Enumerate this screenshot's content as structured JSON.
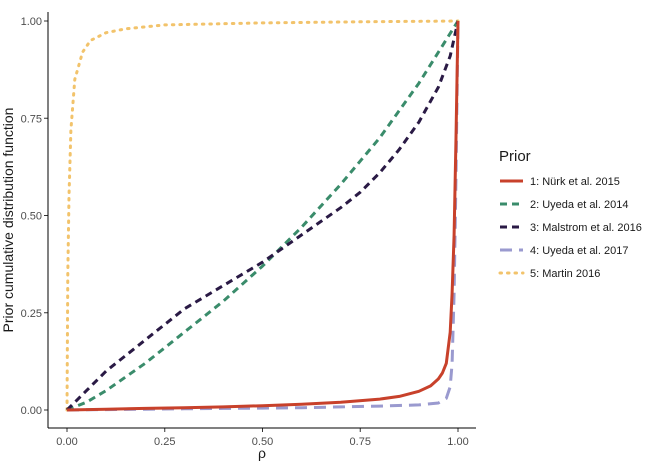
{
  "chart_data": {
    "type": "line",
    "title": "",
    "xlabel": "ρ",
    "ylabel": "Prior cumulative distribution function",
    "xlim": [
      0,
      1
    ],
    "ylim": [
      0,
      1
    ],
    "x_ticks": [
      "0.00",
      "0.25",
      "0.50",
      "0.75",
      "1.00"
    ],
    "y_ticks": [
      "0.00",
      "0.25",
      "0.50",
      "0.75",
      "1.00"
    ],
    "grid": false,
    "legend": {
      "title": "Prior",
      "position": "right"
    },
    "series": [
      {
        "name": "1: Nürk et al. 2015",
        "color": "#C8412B",
        "dash": "solid",
        "x": [
          0,
          0.1,
          0.2,
          0.3,
          0.4,
          0.5,
          0.6,
          0.7,
          0.8,
          0.85,
          0.9,
          0.93,
          0.95,
          0.96,
          0.97,
          0.98,
          0.985,
          0.99,
          0.995,
          1.0
        ],
        "y": [
          0,
          0.002,
          0.004,
          0.006,
          0.008,
          0.011,
          0.015,
          0.02,
          0.028,
          0.035,
          0.048,
          0.062,
          0.08,
          0.095,
          0.12,
          0.2,
          0.3,
          0.45,
          0.7,
          1.0
        ]
      },
      {
        "name": "2: Uyeda et al. 2014",
        "color": "#3A8C6B",
        "dash": "dashed",
        "x": [
          0,
          0.05,
          0.1,
          0.2,
          0.3,
          0.4,
          0.5,
          0.6,
          0.7,
          0.8,
          0.9,
          1.0
        ],
        "y": [
          0,
          0.02,
          0.05,
          0.12,
          0.2,
          0.28,
          0.37,
          0.47,
          0.58,
          0.7,
          0.84,
          1.0
        ]
      },
      {
        "name": "3: Malstrom et al. 2016",
        "color": "#2A1A45",
        "dash": "dashed",
        "x": [
          0,
          0.05,
          0.1,
          0.2,
          0.3,
          0.4,
          0.5,
          0.6,
          0.7,
          0.75,
          0.8,
          0.85,
          0.9,
          0.95,
          0.98,
          1.0
        ],
        "y": [
          0,
          0.05,
          0.1,
          0.18,
          0.26,
          0.32,
          0.38,
          0.45,
          0.52,
          0.56,
          0.61,
          0.67,
          0.74,
          0.83,
          0.91,
          1.0
        ]
      },
      {
        "name": "4: Uyeda et al. 2017",
        "color": "#9A9ACF",
        "dash": "longdash",
        "x": [
          0,
          0.1,
          0.2,
          0.3,
          0.4,
          0.5,
          0.6,
          0.7,
          0.8,
          0.9,
          0.95,
          0.97,
          0.98,
          0.985,
          0.99,
          0.995,
          1.0
        ],
        "y": [
          0,
          0.001,
          0.002,
          0.003,
          0.004,
          0.005,
          0.006,
          0.008,
          0.01,
          0.013,
          0.018,
          0.03,
          0.06,
          0.12,
          0.3,
          0.6,
          1.0
        ]
      },
      {
        "name": "5: Martin 2016",
        "color": "#F2C36B",
        "dash": "dotted",
        "x": [
          0,
          0.002,
          0.005,
          0.01,
          0.02,
          0.04,
          0.06,
          0.1,
          0.15,
          0.25,
          0.5,
          0.75,
          1.0
        ],
        "y": [
          0,
          0.35,
          0.55,
          0.72,
          0.85,
          0.92,
          0.95,
          0.97,
          0.98,
          0.99,
          0.995,
          0.998,
          1.0
        ]
      }
    ]
  }
}
